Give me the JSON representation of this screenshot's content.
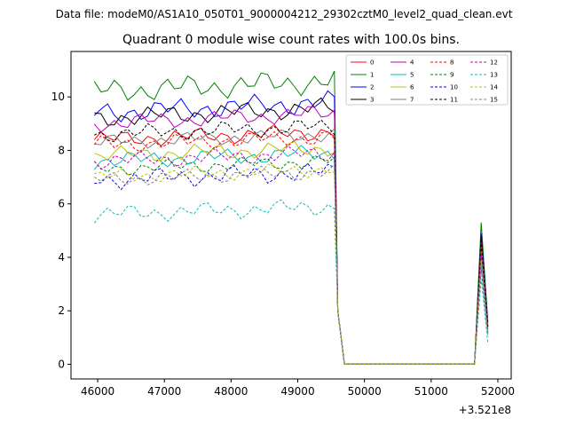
{
  "header": {
    "suptitle": "Data file: modeM0/AS1A10_050T01_9000004212_29302cztM0_level2_quad_clean.evt"
  },
  "chart_data": {
    "type": "line",
    "title": "Quadrant 0 module wise count rates with 100.0s bins.",
    "xlabel": "",
    "ylabel": "",
    "x_offset_label": "+3.521e8",
    "xlim": [
      45600,
      52200
    ],
    "ylim": [
      -0.55,
      11.7
    ],
    "x_ticks": [
      46000,
      47000,
      48000,
      49000,
      50000,
      51000,
      52000
    ],
    "y_ticks": [
      0,
      2,
      4,
      6,
      8,
      10
    ],
    "grid": false,
    "legend": {
      "placement": "upper-right",
      "columns": 4
    },
    "common": {
      "drop_x": [
        49600,
        49650,
        49700
      ],
      "flat_x": [
        49700,
        51650
      ],
      "spike_x": [
        51650,
        51750,
        51850
      ]
    },
    "series": [
      {
        "name": "0",
        "color": "#ff0000",
        "dashed": false,
        "base": 8.4,
        "amp": 0.35,
        "drop": [
          2.0,
          1.0,
          0.0
        ],
        "spike": [
          0.3,
          4.7,
          1.4
        ]
      },
      {
        "name": "1",
        "color": "#008000",
        "dashed": false,
        "base": 10.2,
        "amp": 0.5,
        "drop": [
          2.0,
          1.0,
          0.0
        ],
        "spike": [
          0.3,
          5.3,
          1.6
        ]
      },
      {
        "name": "2",
        "color": "#0000ff",
        "dashed": false,
        "base": 9.4,
        "amp": 0.45,
        "drop": [
          2.0,
          1.0,
          0.0
        ],
        "spike": [
          0.3,
          4.9,
          1.5
        ]
      },
      {
        "name": "3",
        "color": "#000000",
        "dashed": false,
        "base": 9.2,
        "amp": 0.4,
        "drop": [
          2.0,
          1.0,
          0.0
        ],
        "spike": [
          0.3,
          4.8,
          1.4
        ]
      },
      {
        "name": "4",
        "color": "#c000c0",
        "dashed": false,
        "base": 9.0,
        "amp": 0.35,
        "drop": [
          2.0,
          1.0,
          0.0
        ],
        "spike": [
          0.3,
          4.6,
          1.4
        ]
      },
      {
        "name": "5",
        "color": "#00bfbf",
        "dashed": false,
        "base": 7.6,
        "amp": 0.35,
        "drop": [
          2.0,
          1.0,
          0.0
        ],
        "spike": [
          0.3,
          4.0,
          1.2
        ]
      },
      {
        "name": "6",
        "color": "#bfbf00",
        "dashed": false,
        "base": 7.8,
        "amp": 0.35,
        "drop": [
          2.0,
          1.0,
          0.0
        ],
        "spike": [
          0.3,
          4.3,
          1.3
        ]
      },
      {
        "name": "7",
        "color": "#808080",
        "dashed": false,
        "base": 8.3,
        "amp": 0.3,
        "drop": [
          2.0,
          1.0,
          0.0
        ],
        "spike": [
          0.3,
          4.5,
          1.3
        ]
      },
      {
        "name": "8",
        "color": "#ff0000",
        "dashed": true,
        "base": 8.2,
        "amp": 0.35,
        "drop": [
          2.0,
          1.0,
          0.0
        ],
        "spike": [
          0.3,
          4.4,
          1.3
        ]
      },
      {
        "name": "9",
        "color": "#008000",
        "dashed": true,
        "base": 7.3,
        "amp": 0.3,
        "drop": [
          2.0,
          1.0,
          0.0
        ],
        "spike": [
          0.3,
          3.9,
          1.2
        ]
      },
      {
        "name": "10",
        "color": "#0000ff",
        "dashed": true,
        "base": 6.9,
        "amp": 0.4,
        "drop": [
          2.0,
          1.0,
          0.0
        ],
        "spike": [
          0.3,
          3.6,
          1.1
        ]
      },
      {
        "name": "11",
        "color": "#000000",
        "dashed": true,
        "base": 8.6,
        "amp": 0.35,
        "drop": [
          2.0,
          1.0,
          0.0
        ],
        "spike": [
          0.3,
          4.6,
          1.4
        ]
      },
      {
        "name": "12",
        "color": "#c000c0",
        "dashed": true,
        "base": 7.6,
        "amp": 0.35,
        "drop": [
          2.0,
          1.0,
          0.0
        ],
        "spike": [
          0.3,
          4.1,
          1.2
        ]
      },
      {
        "name": "13",
        "color": "#00bfbf",
        "dashed": true,
        "base": 5.6,
        "amp": 0.35,
        "drop": [
          2.0,
          1.0,
          0.0
        ],
        "spike": [
          0.3,
          3.2,
          0.8
        ]
      },
      {
        "name": "14",
        "color": "#bfbf00",
        "dashed": true,
        "base": 7.0,
        "amp": 0.3,
        "drop": [
          2.0,
          1.0,
          0.0
        ],
        "spike": [
          0.3,
          3.9,
          1.1
        ]
      },
      {
        "name": "15",
        "color": "#808080",
        "dashed": true,
        "base": 6.9,
        "amp": 0.3,
        "drop": [
          2.0,
          1.0,
          0.0
        ],
        "spike": [
          0.3,
          3.7,
          1.1
        ]
      }
    ]
  }
}
